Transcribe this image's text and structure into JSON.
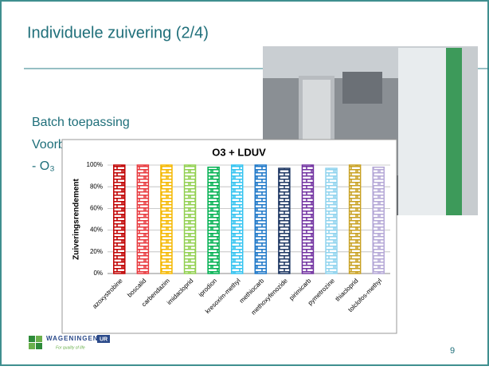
{
  "slide": {
    "title": "Individuele zuivering (2/4)",
    "bullets": [
      "Batch toepassing",
      "Voorbeeld:",
      "- O₃"
    ],
    "page_number": "9",
    "logo": {
      "name": "WAGENINGEN",
      "suffix": "UR",
      "tagline": "For quality of life"
    }
  },
  "chart_data": {
    "type": "bar",
    "title": "O3 + LDUV",
    "y_label": "Zuiveringsrendement",
    "categories": [
      "azoxystrobine",
      "boscalid",
      "carbendazim",
      "imidacloprid",
      "iprodion",
      "kresoxim-methyl",
      "methiocarb",
      "methoxyfenozide",
      "pirimicarb",
      "pymetrozine",
      "thiacloprid",
      "tolclofos-methyl"
    ],
    "values": [
      100,
      100,
      100,
      100,
      98,
      100,
      100,
      97,
      100,
      97,
      100,
      98
    ],
    "colors": [
      "#c00000",
      "#e8383d",
      "#f5b800",
      "#92d050",
      "#00b050",
      "#33c3f0",
      "#1f78c8",
      "#1f3864",
      "#7030a0",
      "#8fd3ee",
      "#c8a020",
      "#b4a7d6"
    ],
    "ylim": [
      0,
      100
    ],
    "yticks": [
      {
        "value": 0,
        "label": "0%"
      },
      {
        "value": 20,
        "label": "20%"
      },
      {
        "value": 40,
        "label": "40%"
      },
      {
        "value": 60,
        "label": "60%"
      },
      {
        "value": 80,
        "label": "80%"
      },
      {
        "value": 100,
        "label": "100%"
      }
    ],
    "grid": true
  }
}
